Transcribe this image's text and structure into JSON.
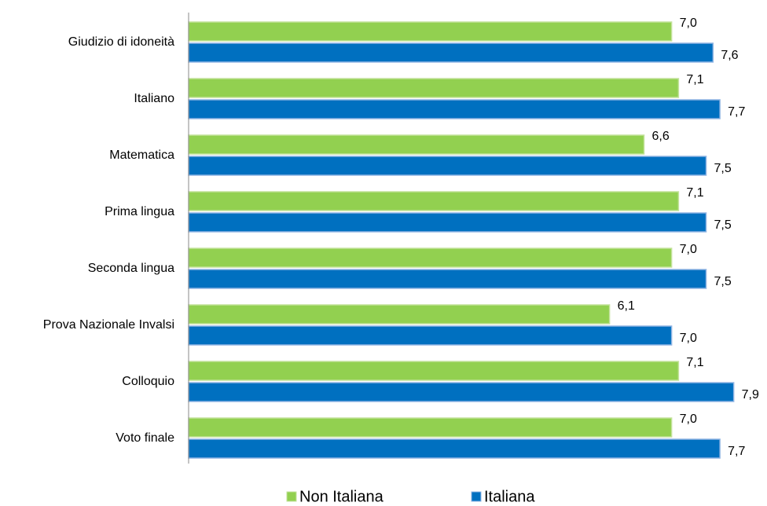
{
  "chart_data": {
    "type": "barh",
    "categories": [
      "Giudizio di idoneità",
      "Italiano",
      "Matematica",
      "Prima lingua",
      "Seconda lingua",
      "Prova Nazionale Invalsi",
      "Colloquio",
      "Voto finale"
    ],
    "series": [
      {
        "name": "Non Italiana",
        "color": "#92d050",
        "values": [
          7.0,
          7.1,
          6.6,
          7.1,
          7.0,
          6.1,
          7.1,
          7.0
        ],
        "value_labels": [
          "7,0",
          "7,1",
          "6,6",
          "7,1",
          "7,0",
          "6,1",
          "7,1",
          "7,0"
        ]
      },
      {
        "name": "Italiana",
        "color": "#0070c0",
        "values": [
          7.6,
          7.7,
          7.5,
          7.5,
          7.5,
          7.0,
          7.9,
          7.7
        ],
        "value_labels": [
          "7,6",
          "7,7",
          "7,5",
          "7,5",
          "7,5",
          "7,0",
          "7,9",
          "7,7"
        ]
      }
    ],
    "xlim": [
      0,
      8.2
    ],
    "legend": "bottom"
  }
}
